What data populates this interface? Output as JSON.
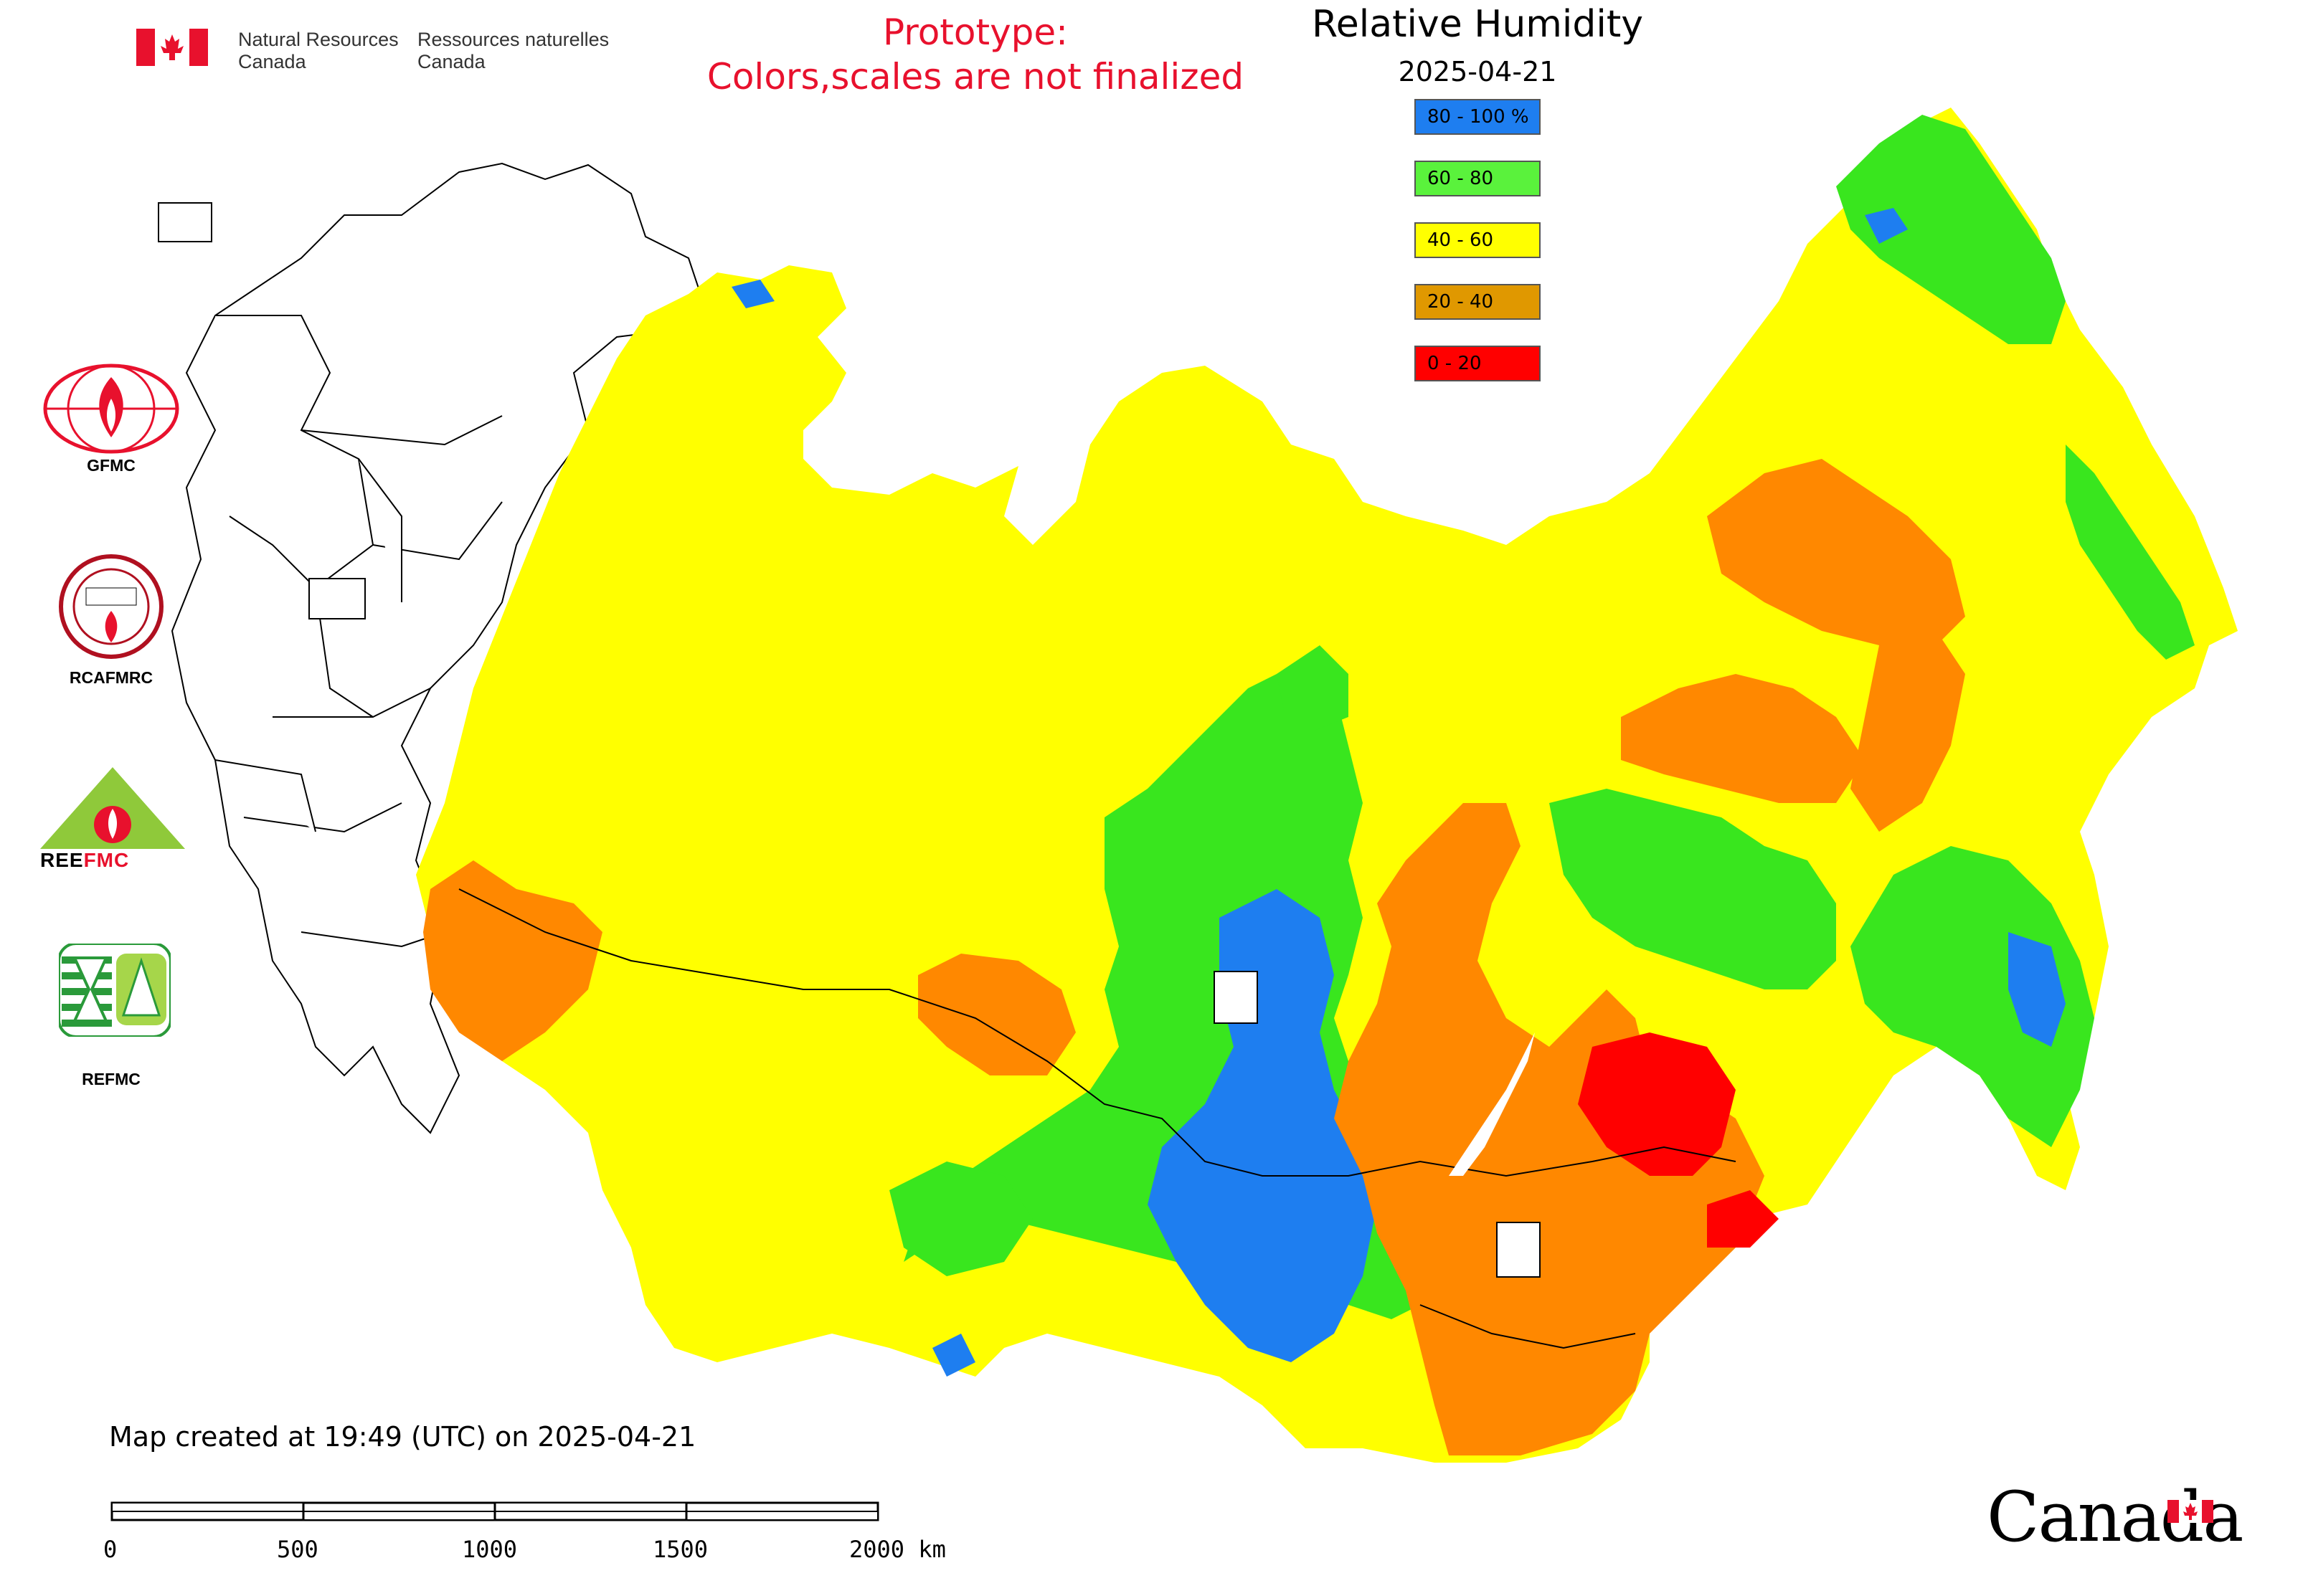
{
  "header": {
    "agency_en_line1": "Natural Resources",
    "agency_en_line2": "Canada",
    "agency_fr_line1": "Ressources naturelles",
    "agency_fr_line2": "Canada",
    "prototype_line1": "Prototype:",
    "prototype_line2": "Colors,scales are not finalized"
  },
  "map": {
    "title": "Relative Humidity",
    "date": "2025-04-21",
    "legend": [
      {
        "label": "80 - 100 %",
        "color": "#1e7ef0"
      },
      {
        "label": "60 - 80",
        "color": "#5af23c"
      },
      {
        "label": "40 - 60",
        "color": "#ffff00"
      },
      {
        "label": "20 - 40",
        "color": "#e09800"
      },
      {
        "label": "0 - 20",
        "color": "#ff0000"
      }
    ],
    "region_colors": {
      "blue": "#1e7ef0",
      "green": "#39e61e",
      "yellow": "#ffff00",
      "orange": "#ff8800",
      "red": "#ff0000"
    }
  },
  "logos": [
    {
      "name": "GFMC",
      "label": "GFMC"
    },
    {
      "name": "RCAFMRC",
      "label": "RCAFMRC"
    },
    {
      "name": "REEFMC",
      "label": "REEFMC"
    },
    {
      "name": "REFMC",
      "label": "REFMC"
    }
  ],
  "footer": {
    "created": "Map created at 19:49 (UTC) on 2025-04-21",
    "scale_labels": [
      "0",
      "500",
      "1000",
      "1500",
      "2000 km"
    ],
    "wordmark": "Canada"
  }
}
